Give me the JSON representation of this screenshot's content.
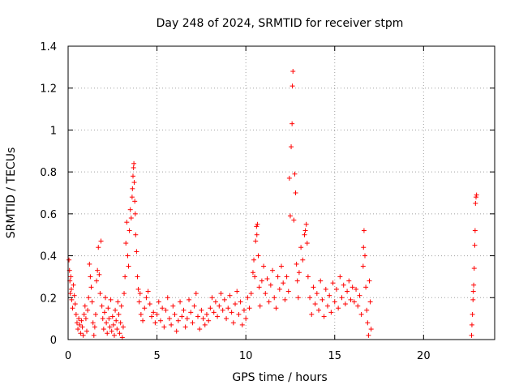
{
  "chart_data": {
    "type": "scatter",
    "title": "Day 248 of 2024, SRMTID for receiver stpm",
    "xlabel": "GPS time / hours",
    "ylabel": "SRMTID / TECUs",
    "xlim": [
      0,
      24
    ],
    "ylim": [
      0,
      1.4
    ],
    "grid": true,
    "marker": "+",
    "color": "#ff0000",
    "x_ticks": [
      {
        "value": 0,
        "label": "0"
      },
      {
        "value": 5,
        "label": "5"
      },
      {
        "value": 10,
        "label": "10"
      },
      {
        "value": 15,
        "label": "15"
      },
      {
        "value": 20,
        "label": "20"
      }
    ],
    "y_ticks": [
      {
        "value": 0,
        "label": "0"
      },
      {
        "value": 0.2,
        "label": "0.2"
      },
      {
        "value": 0.4,
        "label": "0.4"
      },
      {
        "value": 0.6,
        "label": "0.6"
      },
      {
        "value": 0.8,
        "label": "0.8"
      },
      {
        "value": 1.0,
        "label": "1"
      },
      {
        "value": 1.2,
        "label": "1.2"
      },
      {
        "value": 1.4,
        "label": "1.4"
      }
    ],
    "series": [
      {
        "name": "SRMTID",
        "points": [
          [
            0.05,
            0.38
          ],
          [
            0.08,
            0.33
          ],
          [
            0.1,
            0.28
          ],
          [
            0.12,
            0.22
          ],
          [
            0.15,
            0.3
          ],
          [
            0.18,
            0.24
          ],
          [
            0.2,
            0.19
          ],
          [
            0.25,
            0.15
          ],
          [
            0.3,
            0.26
          ],
          [
            0.35,
            0.21
          ],
          [
            0.4,
            0.17
          ],
          [
            0.45,
            0.12
          ],
          [
            0.5,
            0.08
          ],
          [
            0.55,
            0.05
          ],
          [
            0.6,
            0.1
          ],
          [
            0.65,
            0.07
          ],
          [
            0.7,
            0.03
          ],
          [
            0.75,
            0.09
          ],
          [
            0.8,
            0.06
          ],
          [
            0.85,
            0.02
          ],
          [
            0.9,
            0.12
          ],
          [
            0.95,
            0.16
          ],
          [
            1.0,
            0.1
          ],
          [
            1.05,
            0.04
          ],
          [
            1.1,
            0.14
          ],
          [
            1.15,
            0.2
          ],
          [
            1.2,
            0.36
          ],
          [
            1.25,
            0.3
          ],
          [
            1.3,
            0.25
          ],
          [
            1.35,
            0.18
          ],
          [
            1.4,
            0.08
          ],
          [
            1.45,
            0.02
          ],
          [
            1.5,
            0.06
          ],
          [
            1.55,
            0.12
          ],
          [
            1.6,
            0.28
          ],
          [
            1.65,
            0.33
          ],
          [
            1.7,
            0.44
          ],
          [
            1.75,
            0.31
          ],
          [
            1.8,
            0.22
          ],
          [
            1.85,
            0.47
          ],
          [
            1.9,
            0.16
          ],
          [
            1.95,
            0.1
          ],
          [
            2.0,
            0.05
          ],
          [
            2.05,
            0.13
          ],
          [
            2.1,
            0.2
          ],
          [
            2.15,
            0.08
          ],
          [
            2.2,
            0.03
          ],
          [
            2.25,
            0.15
          ],
          [
            2.3,
            0.1
          ],
          [
            2.35,
            0.06
          ],
          [
            2.4,
            0.19
          ],
          [
            2.45,
            0.04
          ],
          [
            2.5,
            0.11
          ],
          [
            2.55,
            0.07
          ],
          [
            2.6,
            0.02
          ],
          [
            2.65,
            0.14
          ],
          [
            2.7,
            0.09
          ],
          [
            2.75,
            0.05
          ],
          [
            2.8,
            0.18
          ],
          [
            2.85,
            0.12
          ],
          [
            2.9,
            0.03
          ],
          [
            2.95,
            0.08
          ],
          [
            3.0,
            0.16
          ],
          [
            3.05,
            0.01
          ],
          [
            3.1,
            0.06
          ],
          [
            3.15,
            0.22
          ],
          [
            3.2,
            0.3
          ],
          [
            3.25,
            0.46
          ],
          [
            3.3,
            0.56
          ],
          [
            3.35,
            0.4
          ],
          [
            3.4,
            0.35
          ],
          [
            3.45,
            0.52
          ],
          [
            3.5,
            0.62
          ],
          [
            3.55,
            0.58
          ],
          [
            3.6,
            0.68
          ],
          [
            3.62,
            0.72
          ],
          [
            3.65,
            0.78
          ],
          [
            3.68,
            0.82
          ],
          [
            3.7,
            0.84
          ],
          [
            3.72,
            0.75
          ],
          [
            3.75,
            0.66
          ],
          [
            3.78,
            0.6
          ],
          [
            3.8,
            0.5
          ],
          [
            3.85,
            0.42
          ],
          [
            3.9,
            0.3
          ],
          [
            3.95,
            0.24
          ],
          [
            4.0,
            0.18
          ],
          [
            4.05,
            0.22
          ],
          [
            4.1,
            0.12
          ],
          [
            4.2,
            0.09
          ],
          [
            4.3,
            0.15
          ],
          [
            4.4,
            0.2
          ],
          [
            4.5,
            0.23
          ],
          [
            4.6,
            0.17
          ],
          [
            4.7,
            0.11
          ],
          [
            4.8,
            0.13
          ],
          [
            4.9,
            0.08
          ],
          [
            5.0,
            0.12
          ],
          [
            5.1,
            0.18
          ],
          [
            5.2,
            0.09
          ],
          [
            5.3,
            0.15
          ],
          [
            5.4,
            0.06
          ],
          [
            5.5,
            0.14
          ],
          [
            5.6,
            0.2
          ],
          [
            5.7,
            0.1
          ],
          [
            5.8,
            0.07
          ],
          [
            5.9,
            0.16
          ],
          [
            6.0,
            0.12
          ],
          [
            6.1,
            0.04
          ],
          [
            6.2,
            0.09
          ],
          [
            6.3,
            0.18
          ],
          [
            6.4,
            0.11
          ],
          [
            6.5,
            0.14
          ],
          [
            6.6,
            0.06
          ],
          [
            6.7,
            0.1
          ],
          [
            6.8,
            0.19
          ],
          [
            6.9,
            0.13
          ],
          [
            7.0,
            0.08
          ],
          [
            7.1,
            0.16
          ],
          [
            7.2,
            0.22
          ],
          [
            7.3,
            0.11
          ],
          [
            7.4,
            0.05
          ],
          [
            7.5,
            0.14
          ],
          [
            7.6,
            0.1
          ],
          [
            7.7,
            0.07
          ],
          [
            7.8,
            0.12
          ],
          [
            7.9,
            0.09
          ],
          [
            8.0,
            0.15
          ],
          [
            8.1,
            0.2
          ],
          [
            8.2,
            0.13
          ],
          [
            8.3,
            0.18
          ],
          [
            8.4,
            0.11
          ],
          [
            8.5,
            0.16
          ],
          [
            8.6,
            0.22
          ],
          [
            8.7,
            0.14
          ],
          [
            8.8,
            0.19
          ],
          [
            8.9,
            0.1
          ],
          [
            9.0,
            0.15
          ],
          [
            9.1,
            0.21
          ],
          [
            9.2,
            0.13
          ],
          [
            9.3,
            0.08
          ],
          [
            9.4,
            0.17
          ],
          [
            9.5,
            0.23
          ],
          [
            9.6,
            0.12
          ],
          [
            9.7,
            0.18
          ],
          [
            9.8,
            0.07
          ],
          [
            9.9,
            0.14
          ],
          [
            10.0,
            0.1
          ],
          [
            10.1,
            0.2
          ],
          [
            10.2,
            0.15
          ],
          [
            10.3,
            0.22
          ],
          [
            10.4,
            0.32
          ],
          [
            10.45,
            0.38
          ],
          [
            10.5,
            0.3
          ],
          [
            10.55,
            0.47
          ],
          [
            10.6,
            0.54
          ],
          [
            10.62,
            0.5
          ],
          [
            10.65,
            0.55
          ],
          [
            10.7,
            0.4
          ],
          [
            10.75,
            0.25
          ],
          [
            10.8,
            0.16
          ],
          [
            10.9,
            0.28
          ],
          [
            11.0,
            0.35
          ],
          [
            11.1,
            0.22
          ],
          [
            11.2,
            0.29
          ],
          [
            11.3,
            0.18
          ],
          [
            11.4,
            0.26
          ],
          [
            11.5,
            0.33
          ],
          [
            11.6,
            0.2
          ],
          [
            11.7,
            0.15
          ],
          [
            11.8,
            0.3
          ],
          [
            11.9,
            0.24
          ],
          [
            12.0,
            0.35
          ],
          [
            12.1,
            0.27
          ],
          [
            12.2,
            0.19
          ],
          [
            12.3,
            0.3
          ],
          [
            12.4,
            0.23
          ],
          [
            12.45,
            0.77
          ],
          [
            12.5,
            0.59
          ],
          [
            12.55,
            0.92
          ],
          [
            12.6,
            1.03
          ],
          [
            12.62,
            1.21
          ],
          [
            12.65,
            1.28
          ],
          [
            12.7,
            0.57
          ],
          [
            12.75,
            0.79
          ],
          [
            12.8,
            0.7
          ],
          [
            12.85,
            0.36
          ],
          [
            12.9,
            0.28
          ],
          [
            12.95,
            0.2
          ],
          [
            13.0,
            0.32
          ],
          [
            13.1,
            0.44
          ],
          [
            13.2,
            0.38
          ],
          [
            13.3,
            0.5
          ],
          [
            13.35,
            0.52
          ],
          [
            13.4,
            0.55
          ],
          [
            13.45,
            0.46
          ],
          [
            13.5,
            0.3
          ],
          [
            13.6,
            0.2
          ],
          [
            13.7,
            0.12
          ],
          [
            13.8,
            0.25
          ],
          [
            13.9,
            0.17
          ],
          [
            14.0,
            0.22
          ],
          [
            14.1,
            0.14
          ],
          [
            14.2,
            0.28
          ],
          [
            14.3,
            0.19
          ],
          [
            14.4,
            0.11
          ],
          [
            14.5,
            0.24
          ],
          [
            14.6,
            0.16
          ],
          [
            14.7,
            0.21
          ],
          [
            14.8,
            0.13
          ],
          [
            14.9,
            0.27
          ],
          [
            15.0,
            0.18
          ],
          [
            15.1,
            0.24
          ],
          [
            15.2,
            0.15
          ],
          [
            15.3,
            0.3
          ],
          [
            15.4,
            0.2
          ],
          [
            15.5,
            0.26
          ],
          [
            15.6,
            0.17
          ],
          [
            15.7,
            0.23
          ],
          [
            15.8,
            0.28
          ],
          [
            15.9,
            0.19
          ],
          [
            16.0,
            0.25
          ],
          [
            16.1,
            0.18
          ],
          [
            16.2,
            0.24
          ],
          [
            16.3,
            0.16
          ],
          [
            16.4,
            0.21
          ],
          [
            16.5,
            0.12
          ],
          [
            16.6,
            0.35
          ],
          [
            16.62,
            0.44
          ],
          [
            16.65,
            0.52
          ],
          [
            16.7,
            0.4
          ],
          [
            16.75,
            0.25
          ],
          [
            16.8,
            0.14
          ],
          [
            16.85,
            0.08
          ],
          [
            16.9,
            0.02
          ],
          [
            16.95,
            0.28
          ],
          [
            17.0,
            0.18
          ],
          [
            17.05,
            0.05
          ],
          [
            22.7,
            0.02
          ],
          [
            22.72,
            0.07
          ],
          [
            22.75,
            0.12
          ],
          [
            22.78,
            0.19
          ],
          [
            22.8,
            0.23
          ],
          [
            22.82,
            0.26
          ],
          [
            22.85,
            0.34
          ],
          [
            22.88,
            0.45
          ],
          [
            22.9,
            0.52
          ],
          [
            22.92,
            0.65
          ],
          [
            22.95,
            0.68
          ],
          [
            22.98,
            0.69
          ]
        ]
      }
    ]
  }
}
